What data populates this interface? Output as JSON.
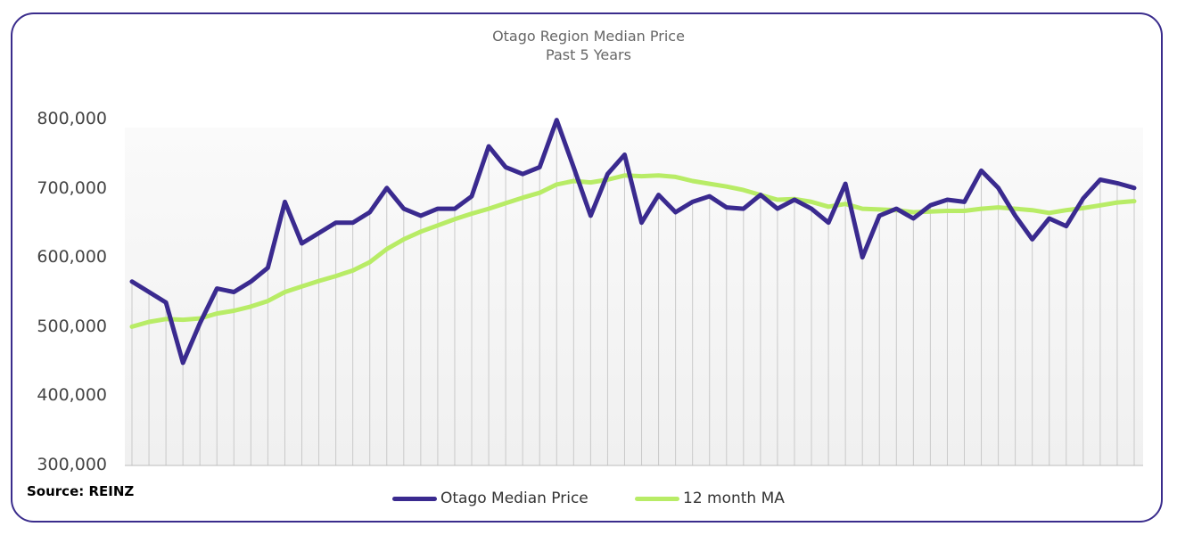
{
  "chart_data": {
    "type": "line",
    "title": "Otago Region Median Price",
    "subtitle": "Past 5 Years",
    "ylim": [
      300000,
      800000
    ],
    "yticks": [
      "300,000",
      "400,000",
      "500,000",
      "600,000",
      "700,000",
      "800,000"
    ],
    "ytick_values": [
      300000,
      400000,
      500000,
      600000,
      700000,
      800000
    ],
    "grid": "vertical",
    "legend_position": "bottom",
    "series": [
      {
        "name": "Otago Median Price",
        "color": "#3a2a8f",
        "values": [
          565000,
          550000,
          535000,
          448000,
          505000,
          555000,
          550000,
          565000,
          585000,
          680000,
          620000,
          635000,
          650000,
          650000,
          665000,
          700000,
          670000,
          660000,
          670000,
          670000,
          688000,
          760000,
          730000,
          720000,
          730000,
          798000,
          730000,
          660000,
          720000,
          748000,
          650000,
          690000,
          665000,
          680000,
          688000,
          672000,
          670000,
          690000,
          670000,
          683000,
          670000,
          650000,
          706000,
          600000,
          660000,
          670000,
          656000,
          675000,
          683000,
          680000,
          725000,
          700000,
          660000,
          626000,
          656000,
          645000,
          685000,
          712000,
          707000,
          700000
        ]
      },
      {
        "name": "12 month MA",
        "color": "#b8ec66",
        "values": [
          500000,
          507000,
          511000,
          510000,
          512000,
          519000,
          523000,
          529000,
          537000,
          550000,
          558000,
          566000,
          573000,
          581000,
          593000,
          612000,
          626000,
          637000,
          646000,
          655000,
          663000,
          670000,
          678000,
          686000,
          693000,
          705000,
          710000,
          708000,
          712000,
          718000,
          717000,
          718000,
          716000,
          710000,
          706000,
          702000,
          697000,
          690000,
          683000,
          684000,
          680000,
          673000,
          677000,
          670000,
          669000,
          668000,
          665000,
          666000,
          667000,
          667000,
          670000,
          672000,
          670000,
          668000,
          664000,
          668000,
          671000,
          675000,
          679000,
          681000
        ]
      }
    ]
  },
  "source_label": "Source: REINZ",
  "legend": {
    "series1_label": "Otago Median Price",
    "series2_label": "12 month MA"
  }
}
